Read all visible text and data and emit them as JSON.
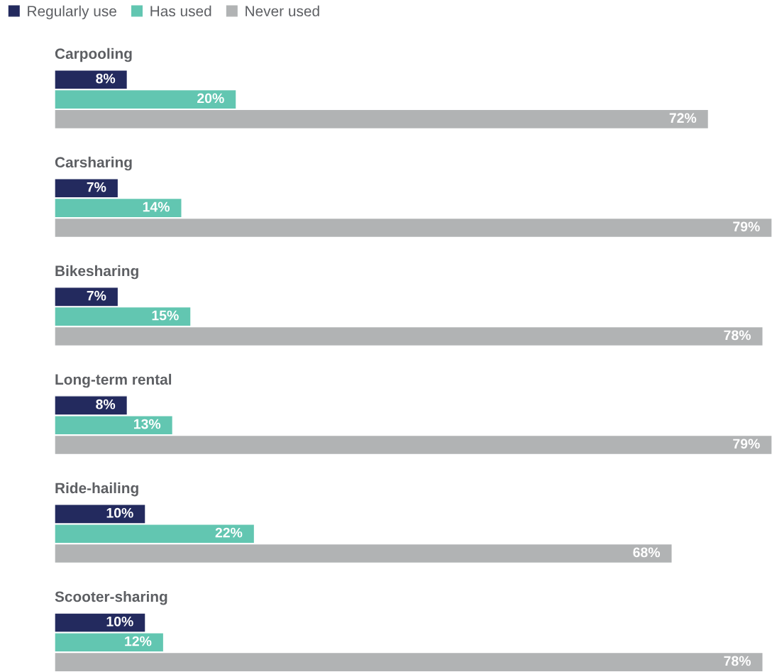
{
  "chart_data": {
    "type": "bar",
    "orientation": "horizontal",
    "legend": "top left",
    "categories": [
      "Carpooling",
      "Carsharing",
      "Bikesharing",
      "Long-term rental",
      "Ride-hailing",
      "Scooter-sharing"
    ],
    "series": [
      {
        "name": "Regularly use",
        "color": "#232a5e",
        "values": [
          8,
          7,
          7,
          8,
          10,
          10
        ],
        "value_labels": [
          "8%",
          "7%",
          "7%",
          "8%",
          "10%",
          "10%"
        ]
      },
      {
        "name": "Has used",
        "color": "#62c6b1",
        "values": [
          20,
          14,
          15,
          13,
          22,
          12
        ],
        "value_labels": [
          "20%",
          "14%",
          "15%",
          "13%",
          "22%",
          "12%"
        ]
      },
      {
        "name": "Never used",
        "color": "#b1b3b4",
        "values": [
          72,
          79,
          78,
          79,
          68,
          78
        ],
        "value_labels": [
          "72%",
          "79%",
          "78%",
          "79%",
          "68%",
          "78%"
        ]
      }
    ]
  }
}
